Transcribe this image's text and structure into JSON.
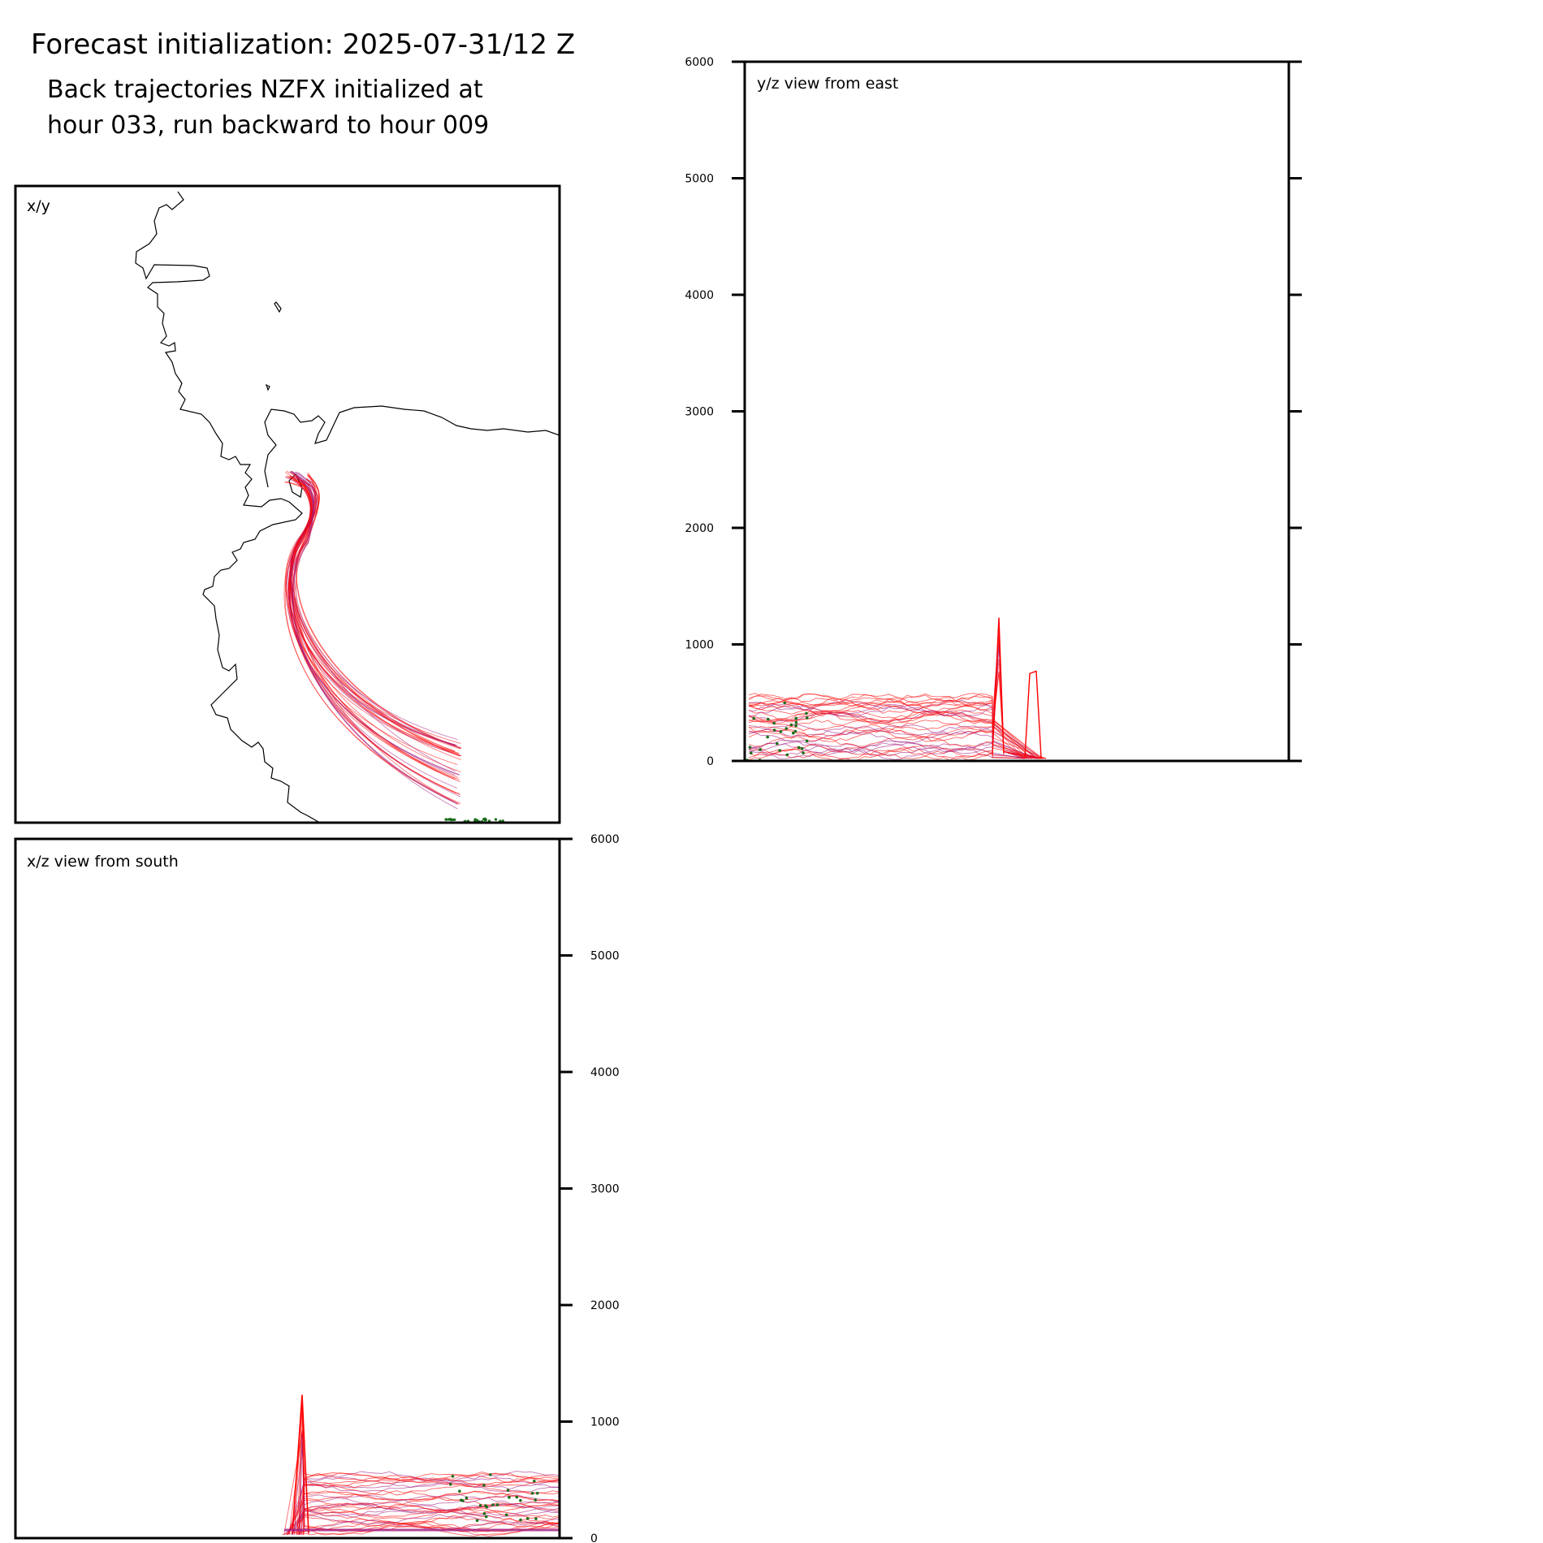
{
  "figure": {
    "title": "Forecast initialization: 2025-07-31/12 Z",
    "subtitle_line1": "Back trajectories NZFX initialized at",
    "subtitle_line2": "hour 033, run backward to hour 009"
  },
  "colors": {
    "trajectory": "#ff0000",
    "trajectory_end": "#a0187c",
    "start_marker": "#1a6e1a",
    "coastline": "#000000",
    "frame": "#000000"
  },
  "chart_data": [
    {
      "type": "line",
      "panel": "x/y",
      "label": "x/y",
      "description_of_content": "plan view map of trajectories with coastline",
      "ticks": []
    },
    {
      "type": "line",
      "panel": "y/z",
      "label": "y/z view from east",
      "ylim": [
        0,
        6000
      ],
      "yticks": [
        0,
        1000,
        2000,
        3000,
        4000,
        5000,
        6000
      ],
      "ytick_side": "left"
    },
    {
      "type": "line",
      "panel": "x/z",
      "label": "x/z view from south",
      "ylim": [
        0,
        6000
      ],
      "yticks": [
        0,
        1000,
        2000,
        3000,
        4000,
        5000,
        6000
      ],
      "ytick_side": "right"
    }
  ]
}
